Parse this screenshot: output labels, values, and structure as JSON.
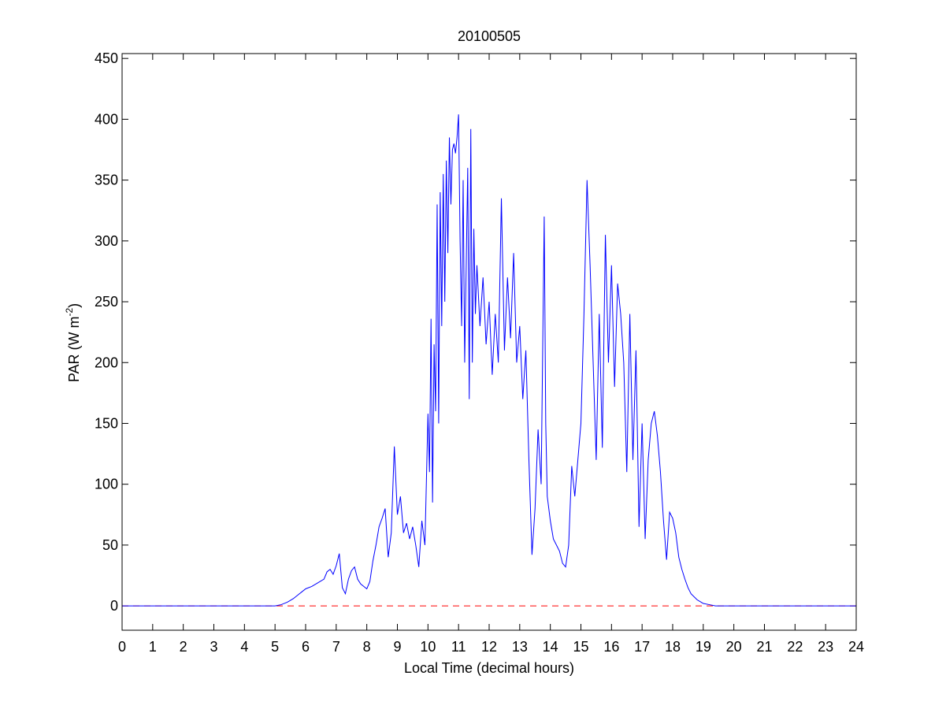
{
  "chart_data": {
    "type": "line",
    "title": "20100505",
    "xlabel": "Local Time (decimal hours)",
    "ylabel": [
      "PAR (W m",
      "-2",
      ")"
    ],
    "xlim": [
      0,
      24
    ],
    "xticks": [
      0,
      1,
      2,
      3,
      4,
      5,
      6,
      7,
      8,
      9,
      10,
      11,
      12,
      13,
      14,
      15,
      16,
      17,
      18,
      19,
      20,
      21,
      22,
      23,
      24
    ],
    "ylim": [
      -20,
      454
    ],
    "yticks": [
      0,
      50,
      100,
      150,
      200,
      250,
      300,
      350,
      400,
      450
    ],
    "series": [
      {
        "color": "#0000ff",
        "x": [
          0,
          5.0,
          5.2,
          5.4,
          5.6,
          5.8,
          6.0,
          6.2,
          6.4,
          6.6,
          6.7,
          6.8,
          6.9,
          7.0,
          7.1,
          7.2,
          7.3,
          7.4,
          7.5,
          7.6,
          7.7,
          7.8,
          8.0,
          8.1,
          8.2,
          8.3,
          8.4,
          8.5,
          8.6,
          8.7,
          8.8,
          8.9,
          9.0,
          9.1,
          9.2,
          9.3,
          9.4,
          9.5,
          9.6,
          9.7,
          9.8,
          9.9,
          10.0,
          10.05,
          10.1,
          10.15,
          10.2,
          10.25,
          10.3,
          10.35,
          10.4,
          10.45,
          10.5,
          10.55,
          10.6,
          10.65,
          10.7,
          10.75,
          10.8,
          10.85,
          10.9,
          10.95,
          11.0,
          11.05,
          11.1,
          11.15,
          11.2,
          11.3,
          11.35,
          11.4,
          11.45,
          11.5,
          11.55,
          11.6,
          11.7,
          11.8,
          11.9,
          12.0,
          12.1,
          12.2,
          12.3,
          12.4,
          12.5,
          12.6,
          12.7,
          12.8,
          12.9,
          13.0,
          13.1,
          13.2,
          13.3,
          13.4,
          13.5,
          13.6,
          13.7,
          13.8,
          13.85,
          13.9,
          14.0,
          14.1,
          14.2,
          14.3,
          14.4,
          14.5,
          14.6,
          14.7,
          14.8,
          14.9,
          15.0,
          15.1,
          15.2,
          15.3,
          15.4,
          15.5,
          15.6,
          15.7,
          15.8,
          15.9,
          16.0,
          16.1,
          16.2,
          16.3,
          16.4,
          16.5,
          16.6,
          16.7,
          16.8,
          16.9,
          17.0,
          17.1,
          17.2,
          17.3,
          17.4,
          17.5,
          17.6,
          17.7,
          17.8,
          17.9,
          18.0,
          18.1,
          18.2,
          18.3,
          18.4,
          18.5,
          18.6,
          18.8,
          19.0,
          19.2,
          19.4,
          19.6,
          24
        ],
        "values": [
          0,
          0,
          1,
          3,
          6,
          10,
          14,
          16,
          19,
          22,
          28,
          30,
          26,
          33,
          43,
          15,
          10,
          22,
          29,
          32,
          22,
          18,
          14,
          20,
          37,
          50,
          65,
          72,
          80,
          40,
          60,
          131,
          75,
          90,
          60,
          68,
          55,
          65,
          50,
          32,
          70,
          50,
          158,
          110,
          236,
          85,
          215,
          160,
          330,
          150,
          340,
          230,
          355,
          250,
          366,
          290,
          385,
          330,
          375,
          380,
          372,
          385,
          404,
          300,
          230,
          350,
          200,
          360,
          170,
          392,
          200,
          310,
          240,
          280,
          230,
          270,
          215,
          250,
          190,
          240,
          200,
          335,
          210,
          270,
          220,
          290,
          200,
          230,
          170,
          210,
          120,
          42,
          80,
          145,
          100,
          320,
          150,
          90,
          70,
          55,
          50,
          45,
          35,
          32,
          50,
          115,
          90,
          120,
          150,
          240,
          350,
          280,
          200,
          120,
          240,
          130,
          305,
          200,
          280,
          180,
          265,
          240,
          200,
          110,
          240,
          120,
          210,
          65,
          150,
          55,
          120,
          150,
          160,
          140,
          110,
          70,
          38,
          77,
          72,
          60,
          40,
          30,
          22,
          15,
          10,
          5,
          2,
          1,
          0,
          0,
          0
        ]
      },
      {
        "color": "#ff0000",
        "dash": "dashed",
        "x": [
          0,
          24
        ],
        "values": [
          0,
          0
        ]
      }
    ]
  }
}
